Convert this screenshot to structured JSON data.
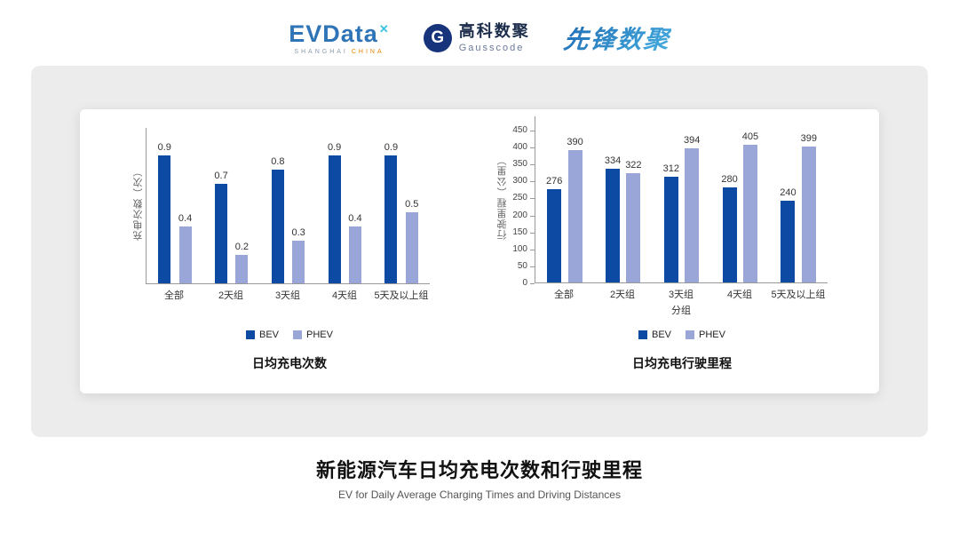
{
  "header": {
    "evdata": {
      "text": "EVData",
      "mark": "✕",
      "sub_left": "SHANGHAI",
      "sub_right": "CHINA"
    },
    "gausscode": {
      "icon_letter": "G",
      "cn": "高科数聚",
      "en": "Gausscode"
    },
    "xianfeng": {
      "text": "先锋数聚"
    }
  },
  "colors": {
    "bev": "#0d4aa3",
    "phev": "#9aa6d8"
  },
  "chart_data": [
    {
      "type": "bar",
      "title": "日均充电次数",
      "ylabel": "充电次数（次）",
      "xlabel": "",
      "categories": [
        "全部",
        "2天组",
        "3天组",
        "4天组",
        "5天及以上组"
      ],
      "series": [
        {
          "name": "BEV",
          "values": [
            0.9,
            0.7,
            0.8,
            0.9,
            0.9
          ]
        },
        {
          "name": "PHEV",
          "values": [
            0.4,
            0.2,
            0.3,
            0.4,
            0.5
          ]
        }
      ],
      "ylim": [
        0,
        1.0
      ],
      "grid": false,
      "legend_position": "bottom",
      "value_labels": true
    },
    {
      "type": "bar",
      "title": "日均充电行驶里程",
      "ylabel": "行驶里程（公里）",
      "xlabel": "分组",
      "categories": [
        "全部",
        "2天组",
        "3天组",
        "4天组",
        "5天及以上组"
      ],
      "series": [
        {
          "name": "BEV",
          "values": [
            276,
            334,
            312,
            280,
            240
          ]
        },
        {
          "name": "PHEV",
          "values": [
            390,
            322,
            394,
            405,
            399
          ]
        }
      ],
      "ylim": [
        0,
        450
      ],
      "yticks": [
        0,
        50,
        100,
        150,
        200,
        250,
        300,
        350,
        400,
        450
      ],
      "grid": false,
      "legend_position": "bottom",
      "value_labels": true
    }
  ],
  "footer": {
    "title": "新能源汽车日均充电次数和行驶里程",
    "subtitle": "EV for Daily Average Charging Times and Driving Distances"
  }
}
